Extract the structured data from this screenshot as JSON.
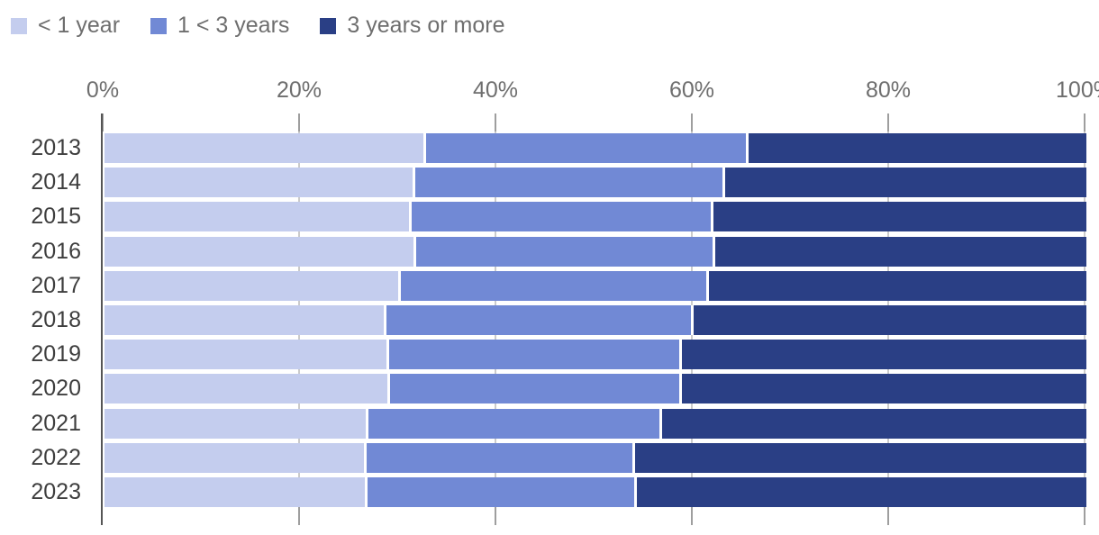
{
  "legend": {
    "items": [
      {
        "label": "< 1 year",
        "color": "#c4cdee"
      },
      {
        "label": "1 < 3 years",
        "color": "#7189d5"
      },
      {
        "label": "3 years or more",
        "color": "#2a3f85"
      }
    ]
  },
  "chart_data": {
    "type": "bar",
    "orientation": "horizontal",
    "stacked": true,
    "stacked_total": 100,
    "title": "",
    "xlabel": "",
    "ylabel": "",
    "categories": [
      "2013",
      "2014",
      "2015",
      "2016",
      "2017",
      "2018",
      "2019",
      "2020",
      "2021",
      "2022",
      "2023"
    ],
    "series": [
      {
        "name": "< 1 year",
        "color": "#c4cdee",
        "values": [
          32.5,
          31.4,
          31.0,
          31.5,
          29.9,
          28.4,
          28.7,
          28.8,
          26.6,
          26.4,
          26.5
        ]
      },
      {
        "name": "1 < 3 years",
        "color": "#7189d5",
        "values": [
          32.8,
          31.5,
          30.7,
          30.4,
          31.4,
          31.3,
          29.8,
          29.7,
          29.9,
          27.4,
          27.4
        ]
      },
      {
        "name": "3 years or more",
        "color": "#2a3f85",
        "values": [
          34.7,
          37.1,
          38.3,
          38.1,
          38.7,
          40.3,
          41.5,
          41.5,
          43.5,
          46.2,
          46.1
        ]
      }
    ],
    "x_axis": {
      "range": [
        0,
        100
      ],
      "tick_labels": [
        "0%",
        "20%",
        "40%",
        "60%",
        "80%",
        "100%"
      ],
      "unit": "%",
      "grid": true
    },
    "legend_position": "top-left",
    "colors": {
      "axis_label_text": "#6e6e6e",
      "category_label_text": "#3e3e3e",
      "tick": "#9e9e9e",
      "gridline": "#cbcbcb",
      "axis_line": "#555555",
      "background": "#ffffff"
    }
  }
}
